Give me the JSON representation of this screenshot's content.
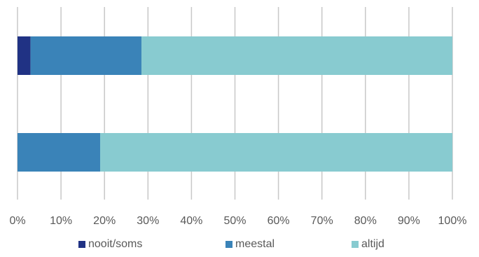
{
  "chart_data": {
    "type": "bar",
    "orientation": "horizontal",
    "stacked": true,
    "percent_scale": true,
    "categories": [
      "",
      ""
    ],
    "series": [
      {
        "name": "nooit/soms",
        "color": "#203284",
        "values": [
          3,
          0
        ]
      },
      {
        "name": "meestal",
        "color": "#3a83b8",
        "values": [
          25.5,
          19
        ]
      },
      {
        "name": "altijd",
        "color": "#88cbd0",
        "values": [
          71.5,
          81
        ]
      }
    ],
    "xlim": [
      0,
      100
    ],
    "x_ticks": [
      "0%",
      "10%",
      "20%",
      "30%",
      "40%",
      "50%",
      "60%",
      "70%",
      "80%",
      "90%",
      "100%"
    ],
    "grid": "vertical",
    "legend_position": "bottom",
    "title": "",
    "xlabel": "",
    "ylabel": ""
  }
}
